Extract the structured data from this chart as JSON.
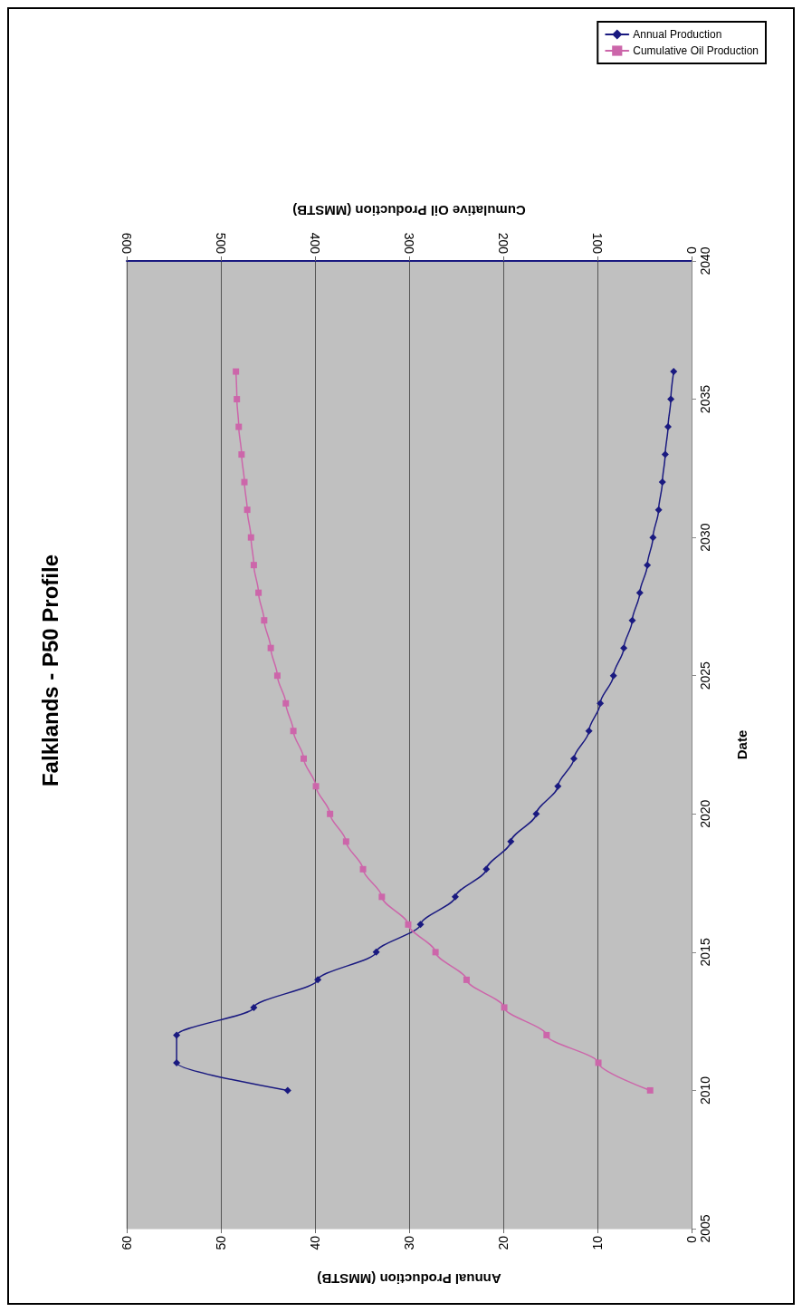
{
  "chart_data": {
    "type": "line",
    "title": "Falklands - P50 Profile",
    "xlabel": "Annual Production (MMSTB)",
    "x2label": "Cumulative Oil Production (MMSTB)",
    "ylabel": "Date",
    "series": [
      {
        "name": "Annual Production",
        "color": "#1a1a80",
        "marker": "diamond",
        "x": [
          42.9,
          54.7,
          54.7,
          46.5,
          39.7,
          33.5,
          28.8,
          25.1,
          21.8,
          19.2,
          16.5,
          14.2,
          12.5,
          10.9,
          9.7,
          8.3,
          7.2,
          6.3,
          5.5,
          4.7,
          4.1,
          3.5,
          3.1,
          2.8,
          2.5,
          2.2,
          1.9
        ],
        "values": [
          2010,
          2011,
          2012,
          2013,
          2014,
          2015,
          2016,
          2017,
          2018,
          2019,
          2020,
          2021,
          2022,
          2023,
          2024,
          2025,
          2026,
          2027,
          2028,
          2029,
          2030,
          2031,
          2032,
          2033,
          2034,
          2035,
          2036
        ]
      },
      {
        "name": "Cumulative Oil Production",
        "color": "#cc66aa",
        "marker": "square",
        "axis": "x2",
        "x": [
          44,
          99,
          154,
          199,
          239,
          272,
          301,
          329,
          349,
          367,
          384,
          399,
          412,
          423,
          431,
          440,
          447,
          454,
          460,
          465,
          468,
          472,
          475,
          478,
          481,
          483,
          484
        ],
        "values": [
          2010,
          2011,
          2012,
          2013,
          2014,
          2015,
          2016,
          2017,
          2018,
          2019,
          2020,
          2021,
          2022,
          2023,
          2024,
          2025,
          2026,
          2027,
          2028,
          2029,
          2030,
          2031,
          2032,
          2033,
          2034,
          2035,
          2036
        ]
      }
    ],
    "xlim": [
      60,
      0
    ],
    "xticks": [
      0,
      10,
      20,
      30,
      40,
      50,
      60
    ],
    "x2lim": [
      600,
      0
    ],
    "x2ticks": [
      0,
      100,
      200,
      300,
      400,
      500,
      600
    ],
    "ylim": [
      2005,
      2040
    ],
    "yticks": [
      2005,
      2010,
      2015,
      2020,
      2025,
      2030,
      2035,
      2040
    ],
    "grid": "x",
    "legend": "top right",
    "line_style": "solid"
  }
}
